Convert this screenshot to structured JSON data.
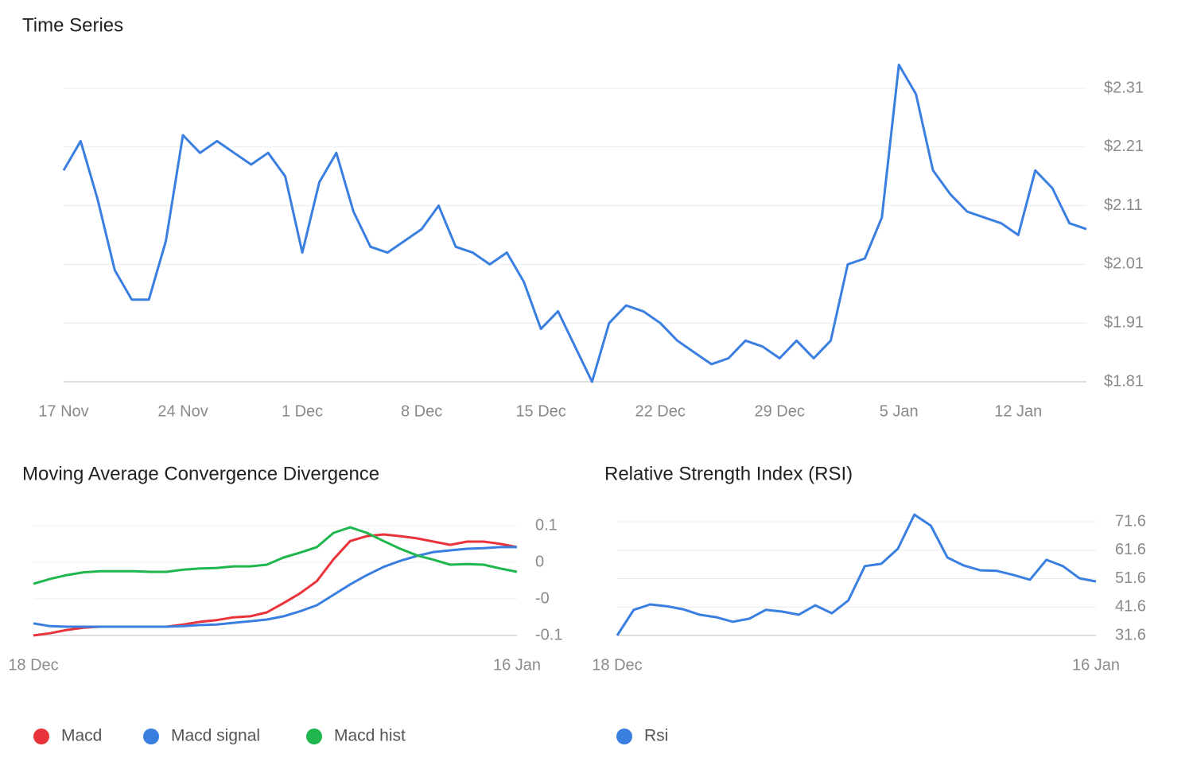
{
  "chart_data": [
    {
      "type": "line",
      "title": "Time Series",
      "categories": [
        "17 Nov",
        null,
        null,
        null,
        null,
        null,
        null,
        "24 Nov",
        null,
        null,
        null,
        null,
        null,
        null,
        "1 Dec",
        null,
        null,
        null,
        null,
        null,
        null,
        "8 Dec",
        null,
        null,
        null,
        null,
        null,
        null,
        "15 Dec",
        null,
        null,
        null,
        null,
        null,
        null,
        "22 Dec",
        null,
        null,
        null,
        null,
        null,
        null,
        "29 Dec",
        null,
        null,
        null,
        null,
        null,
        null,
        "5 Jan",
        null,
        null,
        null,
        null,
        null,
        null,
        "12 Jan",
        null,
        null,
        null,
        null
      ],
      "values": [
        2.17,
        2.22,
        2.12,
        2.0,
        1.95,
        1.95,
        2.05,
        2.23,
        2.2,
        2.22,
        2.2,
        2.18,
        2.2,
        2.16,
        2.03,
        2.15,
        2.2,
        2.1,
        2.04,
        2.03,
        2.05,
        2.07,
        2.11,
        2.04,
        2.03,
        2.01,
        2.03,
        1.98,
        1.9,
        1.93,
        1.87,
        1.81,
        1.91,
        1.94,
        1.93,
        1.91,
        1.88,
        1.86,
        1.84,
        1.85,
        1.88,
        1.87,
        1.85,
        1.88,
        1.85,
        1.88,
        2.01,
        2.02,
        2.09,
        2.35,
        2.3,
        2.17,
        2.13,
        2.1,
        2.09,
        2.08,
        2.06,
        2.17,
        2.14,
        2.08,
        2.07
      ],
      "color": "#3a7fe0",
      "ylim": [
        1.81,
        2.31
      ],
      "yticks": [
        {
          "value": 1.81,
          "label": "$1.81"
        },
        {
          "value": 1.91,
          "label": "$1.91"
        },
        {
          "value": 2.01,
          "label": "$2.01"
        },
        {
          "value": 2.11,
          "label": "$2.11"
        },
        {
          "value": 2.21,
          "label": "$2.21"
        },
        {
          "value": 2.31,
          "label": "$2.31"
        }
      ],
      "grid": true
    },
    {
      "type": "line",
      "title": "Moving Average Convergence Divergence",
      "categories": [
        "18 Dec",
        null,
        null,
        null,
        null,
        null,
        null,
        null,
        null,
        null,
        null,
        null,
        null,
        null,
        null,
        null,
        null,
        null,
        null,
        null,
        null,
        null,
        null,
        null,
        null,
        null,
        null,
        null,
        null,
        "16 Jan"
      ],
      "series": [
        {
          "name": "Macd",
          "color": "#e8333a",
          "values": [
            -0.1,
            -0.096,
            -0.09,
            -0.086,
            -0.084,
            -0.084,
            -0.084,
            -0.084,
            -0.084,
            -0.08,
            -0.075,
            -0.072,
            -0.067,
            -0.065,
            -0.058,
            -0.041,
            -0.023,
            -0.001,
            0.039,
            0.072,
            0.081,
            0.084,
            0.081,
            0.077,
            0.071,
            0.065,
            0.071,
            0.071,
            0.067,
            0.061
          ]
        },
        {
          "name": "Macd signal",
          "color": "#3a7fe0",
          "values": [
            -0.078,
            -0.083,
            -0.084,
            -0.084,
            -0.084,
            -0.084,
            -0.084,
            -0.084,
            -0.084,
            -0.083,
            -0.081,
            -0.08,
            -0.077,
            -0.074,
            -0.071,
            -0.065,
            -0.056,
            -0.045,
            -0.026,
            -0.007,
            0.01,
            0.025,
            0.036,
            0.045,
            0.052,
            0.055,
            0.058,
            0.059,
            0.061,
            0.061
          ]
        },
        {
          "name": "Macd hist",
          "color": "#1fb64e",
          "values": [
            -0.006,
            0.003,
            0.01,
            0.015,
            0.017,
            0.017,
            0.017,
            0.016,
            0.016,
            0.02,
            0.022,
            0.023,
            0.026,
            0.026,
            0.029,
            0.042,
            0.051,
            0.061,
            0.087,
            0.097,
            0.087,
            0.072,
            0.058,
            0.046,
            0.038,
            0.029,
            0.03,
            0.029,
            0.022,
            0.016
          ]
        }
      ],
      "ylim": [
        -0.1,
        0.1
      ],
      "yticks": [
        -0.1,
        {
          "value": -0.0333,
          "label": "-0"
        },
        {
          "value": 0.0333,
          "label": "0"
        },
        0.1
      ],
      "grid": true
    },
    {
      "type": "line",
      "title": "Relative Strength Index (RSI)",
      "categories": [
        "18 Dec",
        null,
        null,
        null,
        null,
        null,
        null,
        null,
        null,
        null,
        null,
        null,
        null,
        null,
        null,
        null,
        null,
        null,
        null,
        null,
        null,
        null,
        null,
        null,
        null,
        null,
        null,
        null,
        null,
        "16 Jan"
      ],
      "series": [
        {
          "name": "Rsi",
          "color": "#3a7fe0",
          "values": [
            31.6,
            40.6,
            42.5,
            41.9,
            40.8,
            38.9,
            38.0,
            36.4,
            37.5,
            40.6,
            40.0,
            38.9,
            42.2,
            39.4,
            43.9,
            56.0,
            56.8,
            62.1,
            74.1,
            70.2,
            59.0,
            56.2,
            54.5,
            54.3,
            52.9,
            51.2,
            58.2,
            56.0,
            51.7,
            50.6
          ]
        }
      ],
      "ylim": [
        31.6,
        71.6
      ],
      "yticks": [
        31.6,
        41.6,
        51.6,
        61.6,
        71.6
      ],
      "grid": true
    }
  ]
}
